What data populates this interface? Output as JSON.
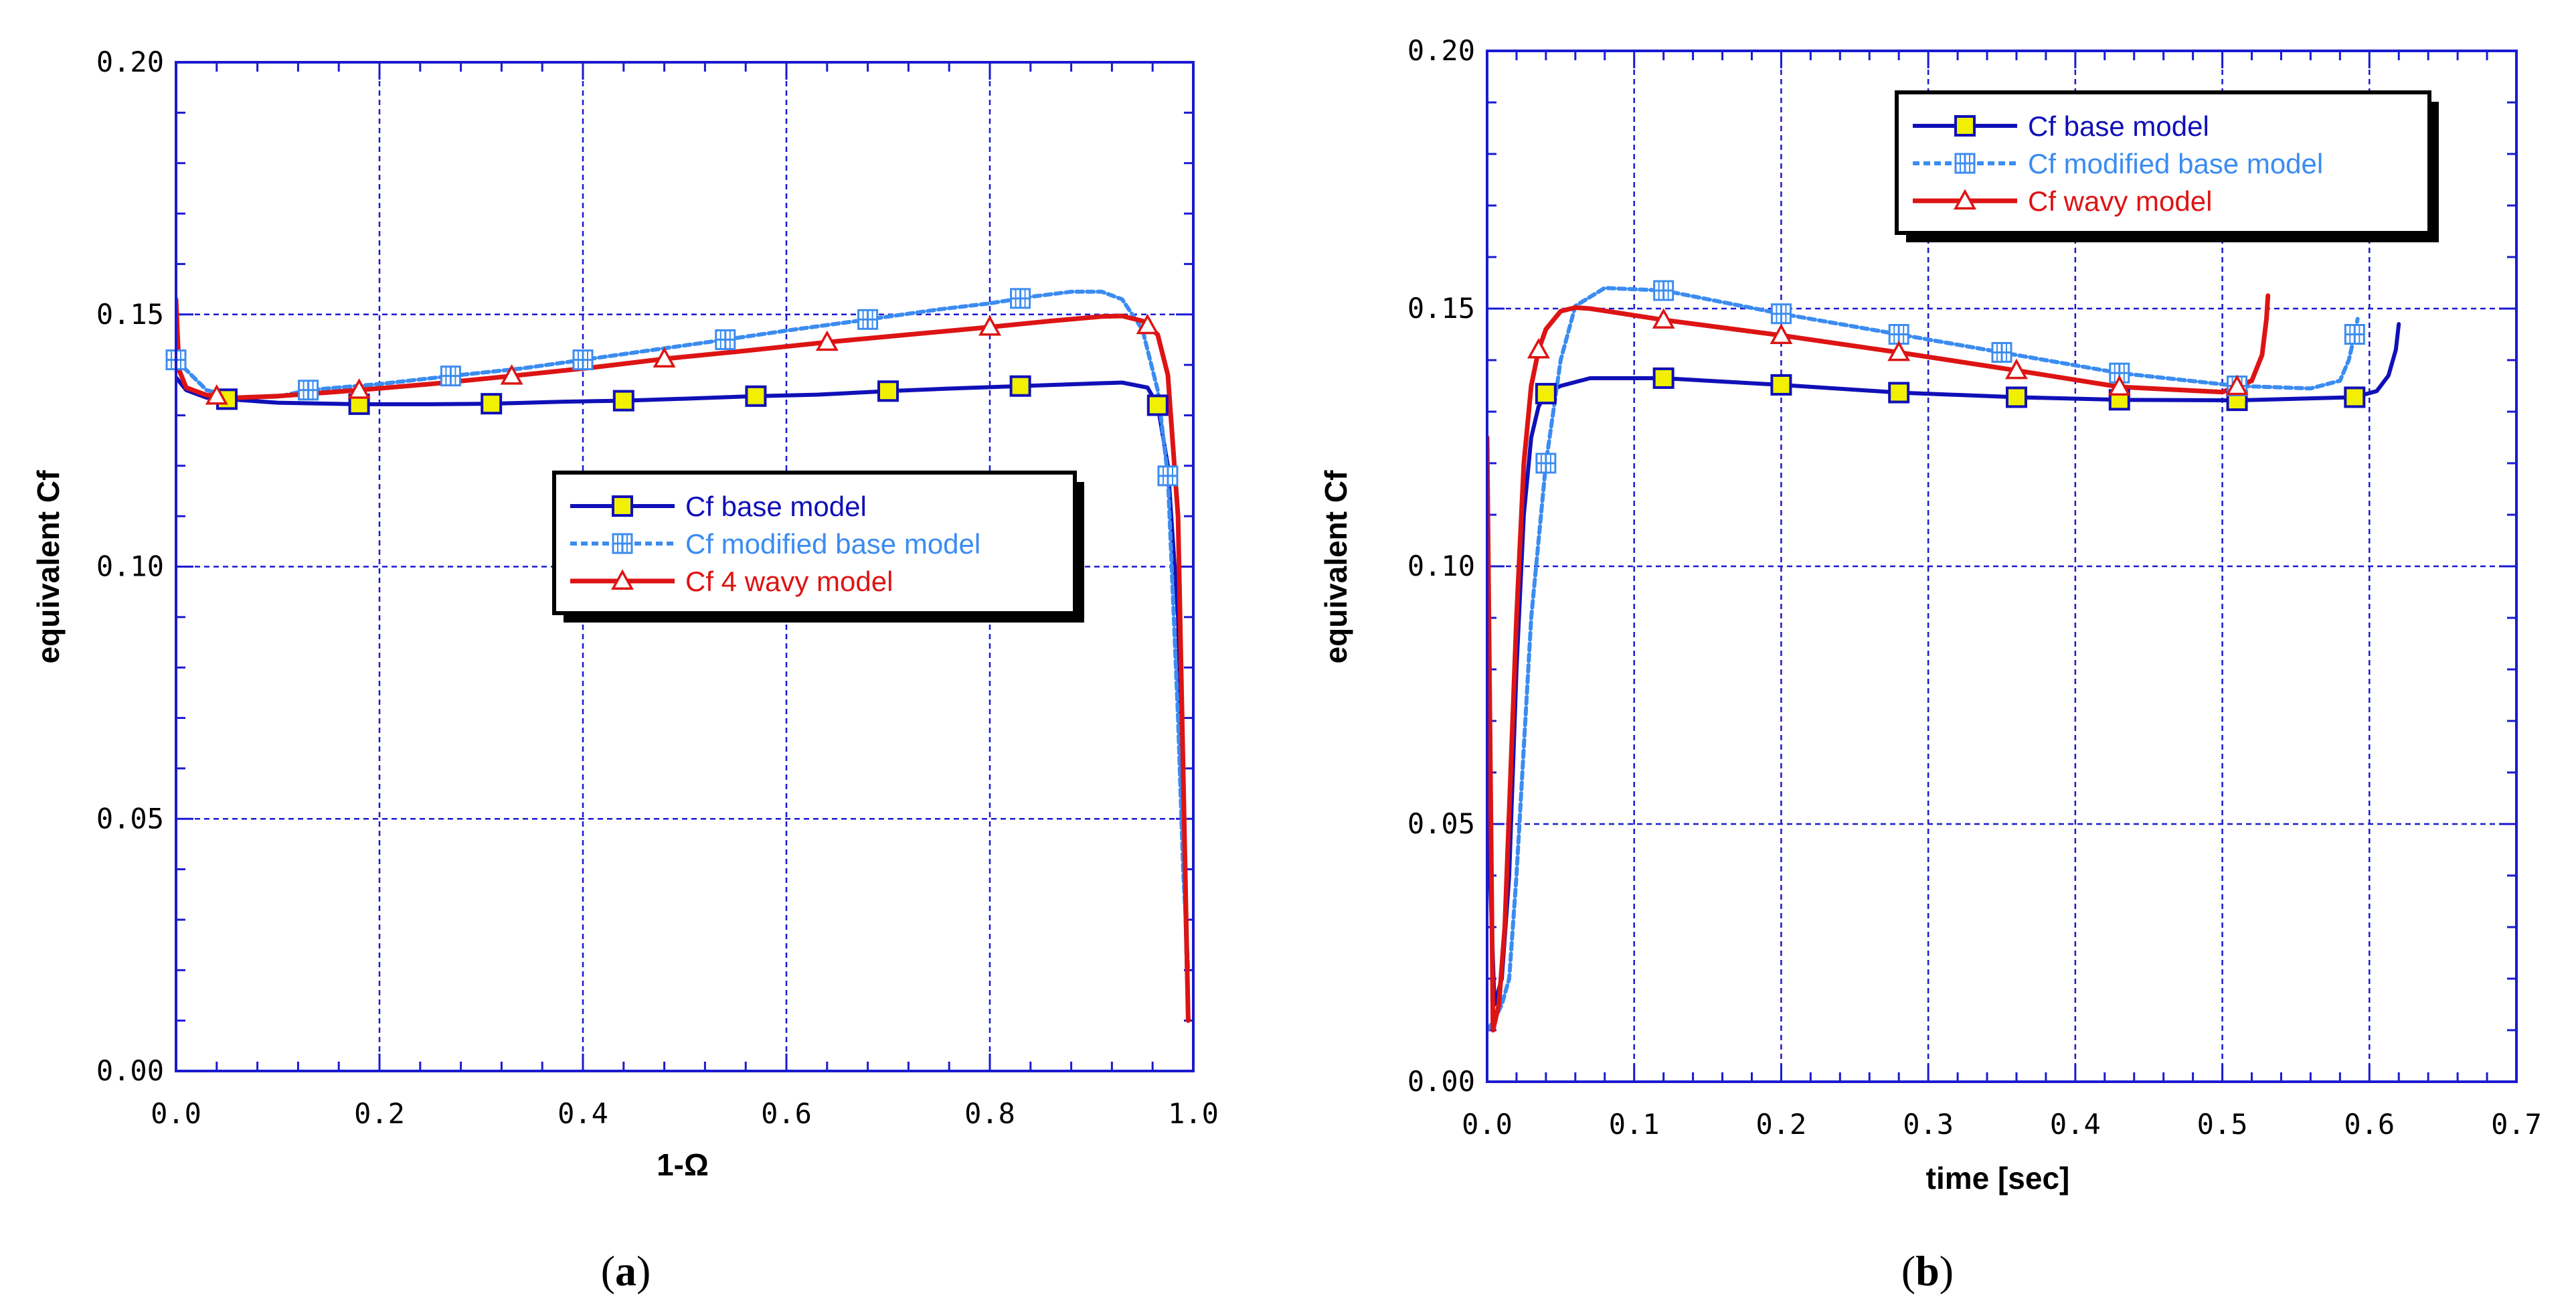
{
  "colors": {
    "base": "#1010b8",
    "modified": "#3b8cf0",
    "wavy": "#dd1414",
    "frame": "#1a1ad0",
    "grid": "#1a1ad0",
    "marker_fill": "#f0f000"
  },
  "captions": [
    {
      "open": "(",
      "letter": "a",
      "close": ")"
    },
    {
      "open": "(",
      "letter": "b",
      "close": ")"
    }
  ],
  "chart_data": [
    {
      "type": "line",
      "id": "a",
      "title": "",
      "xlabel": "1-Ω",
      "ylabel": "equivalent Cf",
      "xlim": [
        0,
        1.0
      ],
      "ylim": [
        0,
        0.2
      ],
      "xticks": [
        "0.0",
        "0.2",
        "0.4",
        "0.6",
        "0.8",
        "1.0"
      ],
      "yticks": [
        "0.00",
        "0.05",
        "0.10",
        "0.15",
        "0.20"
      ],
      "legend_position": "center-right",
      "series": [
        {
          "name": "Cf base model",
          "key": "base",
          "marker": "square",
          "x": [
            0.0,
            0.01,
            0.03,
            0.05,
            0.1,
            0.18,
            0.25,
            0.31,
            0.38,
            0.44,
            0.5,
            0.57,
            0.63,
            0.7,
            0.76,
            0.83,
            0.9,
            0.93,
            0.955,
            0.965,
            0.975,
            0.985,
            0.99,
            0.995
          ],
          "y": [
            0.1375,
            0.135,
            0.1335,
            0.1332,
            0.1325,
            0.1322,
            0.1322,
            0.1323,
            0.1327,
            0.1329,
            0.1333,
            0.1338,
            0.1341,
            0.1348,
            0.1353,
            0.1358,
            0.1363,
            0.1365,
            0.1355,
            0.132,
            0.12,
            0.09,
            0.05,
            0.01
          ],
          "markers_x": [
            0.05,
            0.18,
            0.31,
            0.44,
            0.57,
            0.7,
            0.83,
            0.965
          ]
        },
        {
          "name": "Cf modified base model",
          "key": "modified",
          "marker": "grid-square",
          "x": [
            0.0,
            0.03,
            0.06,
            0.1,
            0.13,
            0.2,
            0.27,
            0.34,
            0.4,
            0.47,
            0.54,
            0.6,
            0.68,
            0.75,
            0.8,
            0.84,
            0.88,
            0.91,
            0.93,
            0.95,
            0.965,
            0.975,
            0.985,
            0.99,
            0.995
          ],
          "y": [
            0.141,
            0.135,
            0.1335,
            0.1337,
            0.135,
            0.1362,
            0.1378,
            0.1393,
            0.141,
            0.143,
            0.145,
            0.1468,
            0.149,
            0.151,
            0.1522,
            0.1535,
            0.1545,
            0.1545,
            0.153,
            0.147,
            0.135,
            0.118,
            0.07,
            0.04,
            0.02
          ],
          "markers_x": [
            0.0,
            0.13,
            0.27,
            0.4,
            0.54,
            0.68,
            0.83,
            0.975
          ]
        },
        {
          "name": "Cf 4 wavy model",
          "key": "wavy",
          "marker": "triangle",
          "x": [
            0.0,
            0.003,
            0.01,
            0.03,
            0.06,
            0.1,
            0.18,
            0.25,
            0.33,
            0.41,
            0.48,
            0.56,
            0.64,
            0.72,
            0.8,
            0.86,
            0.91,
            0.93,
            0.95,
            0.965,
            0.975,
            0.985,
            0.99,
            0.995
          ],
          "y": [
            0.153,
            0.139,
            0.1355,
            0.134,
            0.1335,
            0.1338,
            0.135,
            0.1362,
            0.1378,
            0.1395,
            0.1412,
            0.1428,
            0.1445,
            0.146,
            0.1475,
            0.1487,
            0.1496,
            0.1497,
            0.1487,
            0.146,
            0.138,
            0.11,
            0.06,
            0.01
          ],
          "markers_x": [
            0.04,
            0.18,
            0.33,
            0.48,
            0.64,
            0.8,
            0.955
          ]
        }
      ]
    },
    {
      "type": "line",
      "id": "b",
      "title": "",
      "xlabel": "time [sec]",
      "ylabel": "equivalent Cf",
      "xlim": [
        0,
        0.7
      ],
      "ylim": [
        0,
        0.2
      ],
      "xticks": [
        "0.0",
        "0.1",
        "0.2",
        "0.3",
        "0.4",
        "0.5",
        "0.6",
        "0.7"
      ],
      "yticks": [
        "0.00",
        "0.05",
        "0.10",
        "0.15",
        "0.20"
      ],
      "legend_position": "top-center",
      "series": [
        {
          "name": "Cf base model",
          "key": "base",
          "marker": "square",
          "x": [
            0.0,
            0.002,
            0.005,
            0.01,
            0.015,
            0.02,
            0.025,
            0.03,
            0.035,
            0.04,
            0.05,
            0.07,
            0.12,
            0.2,
            0.28,
            0.36,
            0.43,
            0.51,
            0.59,
            0.605,
            0.613,
            0.618,
            0.62
          ],
          "y": [
            0.125,
            0.04,
            0.015,
            0.02,
            0.04,
            0.08,
            0.11,
            0.125,
            0.131,
            0.1335,
            0.135,
            0.1365,
            0.1365,
            0.1352,
            0.1337,
            0.1328,
            0.1323,
            0.1322,
            0.1328,
            0.134,
            0.137,
            0.142,
            0.147
          ],
          "markers_x": [
            0.04,
            0.12,
            0.2,
            0.28,
            0.36,
            0.43,
            0.51,
            0.59
          ]
        },
        {
          "name": "Cf modified base model",
          "key": "modified",
          "marker": "grid-square",
          "x": [
            0.0,
            0.005,
            0.01,
            0.015,
            0.02,
            0.03,
            0.04,
            0.05,
            0.06,
            0.08,
            0.12,
            0.2,
            0.28,
            0.35,
            0.43,
            0.51,
            0.56,
            0.58,
            0.586,
            0.59,
            0.592
          ],
          "y": [
            0.01,
            0.012,
            0.015,
            0.02,
            0.04,
            0.09,
            0.12,
            0.14,
            0.1505,
            0.154,
            0.1535,
            0.149,
            0.145,
            0.1415,
            0.1375,
            0.135,
            0.1345,
            0.136,
            0.14,
            0.145,
            0.148
          ],
          "markers_x": [
            0.04,
            0.12,
            0.2,
            0.28,
            0.35,
            0.43,
            0.51,
            0.59
          ]
        },
        {
          "name": "Cf wavy model",
          "key": "wavy",
          "marker": "triangle",
          "x": [
            0.0,
            0.004,
            0.008,
            0.012,
            0.016,
            0.02,
            0.025,
            0.03,
            0.035,
            0.04,
            0.05,
            0.06,
            0.07,
            0.12,
            0.2,
            0.28,
            0.36,
            0.43,
            0.5,
            0.52,
            0.527,
            0.53,
            0.531
          ],
          "y": [
            0.125,
            0.01,
            0.015,
            0.03,
            0.06,
            0.09,
            0.12,
            0.135,
            0.142,
            0.146,
            0.1495,
            0.1502,
            0.15,
            0.1478,
            0.1448,
            0.1415,
            0.138,
            0.1348,
            0.1338,
            0.136,
            0.141,
            0.148,
            0.1525
          ],
          "markers_x": [
            0.035,
            0.12,
            0.2,
            0.28,
            0.36,
            0.43,
            0.51
          ]
        }
      ]
    }
  ]
}
